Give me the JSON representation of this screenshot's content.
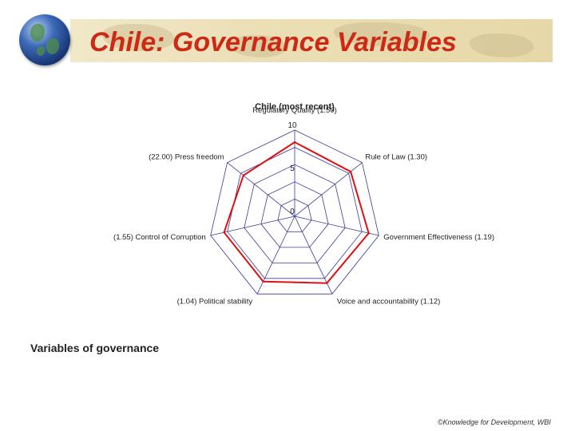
{
  "slide": {
    "title": "Chile: Governance Variables",
    "section_heading": "Variables of governance",
    "footer": "©Knowledge for Development, WBI"
  },
  "colors": {
    "title": "#cc2a14",
    "series": "#dd1111",
    "grid": "#3a3a99",
    "banner": "#ebdfb6"
  },
  "icons": {
    "logo": "globe-icon"
  },
  "chart_data": {
    "type": "radar",
    "title": "Chile (most recent)",
    "scale": [
      0,
      10
    ],
    "ticks": [
      {
        "label": "10",
        "value": 10
      },
      {
        "label": "5",
        "value": 5
      },
      {
        "label": "0",
        "value": 0
      }
    ],
    "axes": [
      "Regulatory Quality (1.50)",
      "Rule of Law (1.30)",
      "Government Effectiveness (1.19)",
      "Voice and accountability (1.12)",
      "(1.04) Political stability",
      "(1.55) Control of Corruption",
      "(22.00) Press freedom"
    ],
    "series": [
      {
        "values": [
          8.6,
          8.3,
          8.8,
          8.6,
          8.4,
          8.4,
          7.6
        ]
      }
    ],
    "grid": true
  }
}
